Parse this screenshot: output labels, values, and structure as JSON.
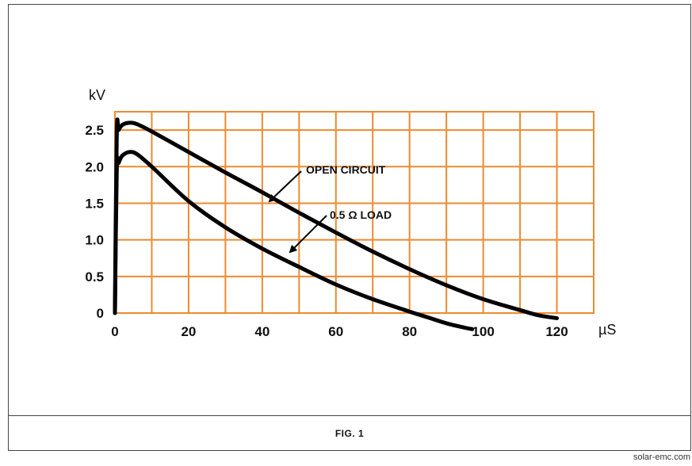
{
  "chart_data": {
    "type": "line",
    "ylabel": "kV",
    "xlabel": "µS",
    "xlim": [
      0,
      130
    ],
    "ylim": [
      0,
      2.75
    ],
    "x_ticks": [
      "0",
      "20",
      "40",
      "60",
      "80",
      "100",
      "120"
    ],
    "x_tick_values": [
      0,
      20,
      40,
      60,
      80,
      100,
      120
    ],
    "y_ticks": [
      "0",
      "0.5",
      "1.0",
      "1.5",
      "2.0",
      "2.5"
    ],
    "y_tick_values": [
      0,
      0.5,
      1.0,
      1.5,
      2.0,
      2.5
    ],
    "grid": true,
    "grid_color": "#ee8a2e",
    "line_color": "#000000",
    "series": [
      {
        "name": "OPEN CIRCUIT",
        "x": [
          0,
          0.5,
          1,
          2,
          4,
          6,
          10,
          20,
          30,
          40,
          50,
          60,
          70,
          80,
          90,
          100,
          110,
          115,
          120
        ],
        "y": [
          0,
          2.45,
          2.5,
          2.57,
          2.6,
          2.58,
          2.48,
          2.2,
          1.92,
          1.65,
          1.37,
          1.1,
          0.84,
          0.6,
          0.38,
          0.19,
          0.04,
          -0.03,
          -0.07
        ]
      },
      {
        "name": "0.5 Ω LOAD",
        "x": [
          0,
          0.5,
          1,
          2,
          4,
          6,
          10,
          20,
          30,
          40,
          50,
          60,
          70,
          80,
          85,
          90,
          95,
          97
        ],
        "y": [
          0,
          1.95,
          2.05,
          2.15,
          2.2,
          2.17,
          2.0,
          1.53,
          1.17,
          0.88,
          0.63,
          0.39,
          0.19,
          0.02,
          -0.06,
          -0.14,
          -0.2,
          -0.22
        ]
      }
    ],
    "annotations": [
      {
        "text": "OPEN CIRCUIT",
        "target_series": 0
      },
      {
        "text": "0.5 Ω LOAD",
        "target_series": 1
      }
    ]
  },
  "caption": "FIG. 1",
  "watermark": "solar-emc.com"
}
